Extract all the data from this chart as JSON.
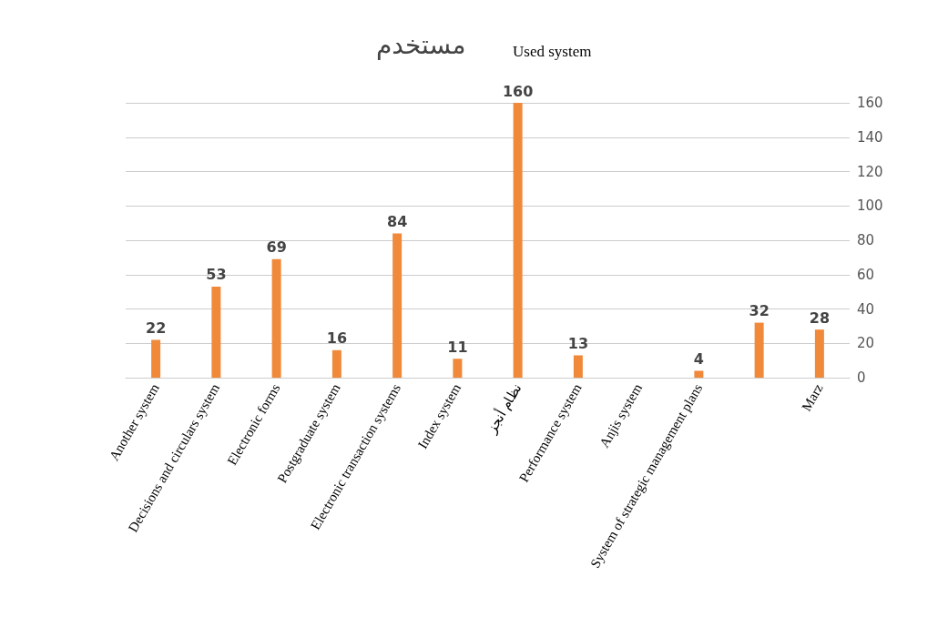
{
  "chart_data": {
    "type": "bar",
    "title": "مستخدم",
    "subtitle": "Used system",
    "categories": [
      "Another system",
      "Decisions and circulars system",
      "Electronic forms",
      "Postgraduate system",
      "Electronic transaction systems",
      "Index system",
      "نظام أنجز",
      "Performance system",
      "Anjis system",
      "System of strategic management plans",
      null,
      "Marz"
    ],
    "values": [
      22,
      53,
      69,
      16,
      84,
      11,
      160,
      13,
      null,
      4,
      32,
      28
    ],
    "color": "#f0893a",
    "ylim": [
      0,
      160
    ],
    "yticks": [
      0,
      20,
      40,
      60,
      80,
      100,
      120,
      140,
      160
    ],
    "grid": "y",
    "data_labels": true
  }
}
